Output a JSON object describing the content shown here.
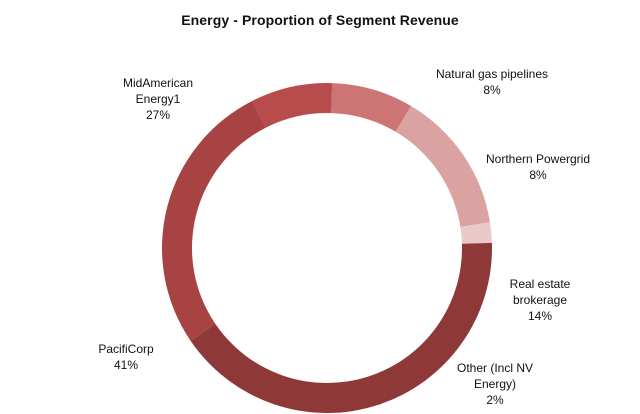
{
  "chart_data": {
    "type": "pie",
    "subtype": "donut",
    "title": "Energy - Proportion of Segment Revenue",
    "legend": "none",
    "slices": [
      {
        "name_lines": [
          "Natural gas pipelines"
        ],
        "value": 8,
        "label": "8%",
        "color": "#b84b4b"
      },
      {
        "name_lines": [
          "Northern Powergrid"
        ],
        "value": 8,
        "label": "8%",
        "color": "#cd7474"
      },
      {
        "name_lines": [
          "Real estate",
          "brokerage"
        ],
        "value": 14,
        "label": "14%",
        "color": "#dba2a2"
      },
      {
        "name_lines": [
          "Other (Incl NV",
          "Energy)"
        ],
        "value": 2,
        "label": "2%",
        "color": "#ecc9c9"
      },
      {
        "name_lines": [
          "PacifiCorp"
        ],
        "value": 41,
        "label": "41%",
        "color": "#8f3838"
      },
      {
        "name_lines": [
          "MidAmerican",
          "Energy1"
        ],
        "value": 27,
        "label": "27%",
        "color": "#a84343"
      }
    ]
  }
}
